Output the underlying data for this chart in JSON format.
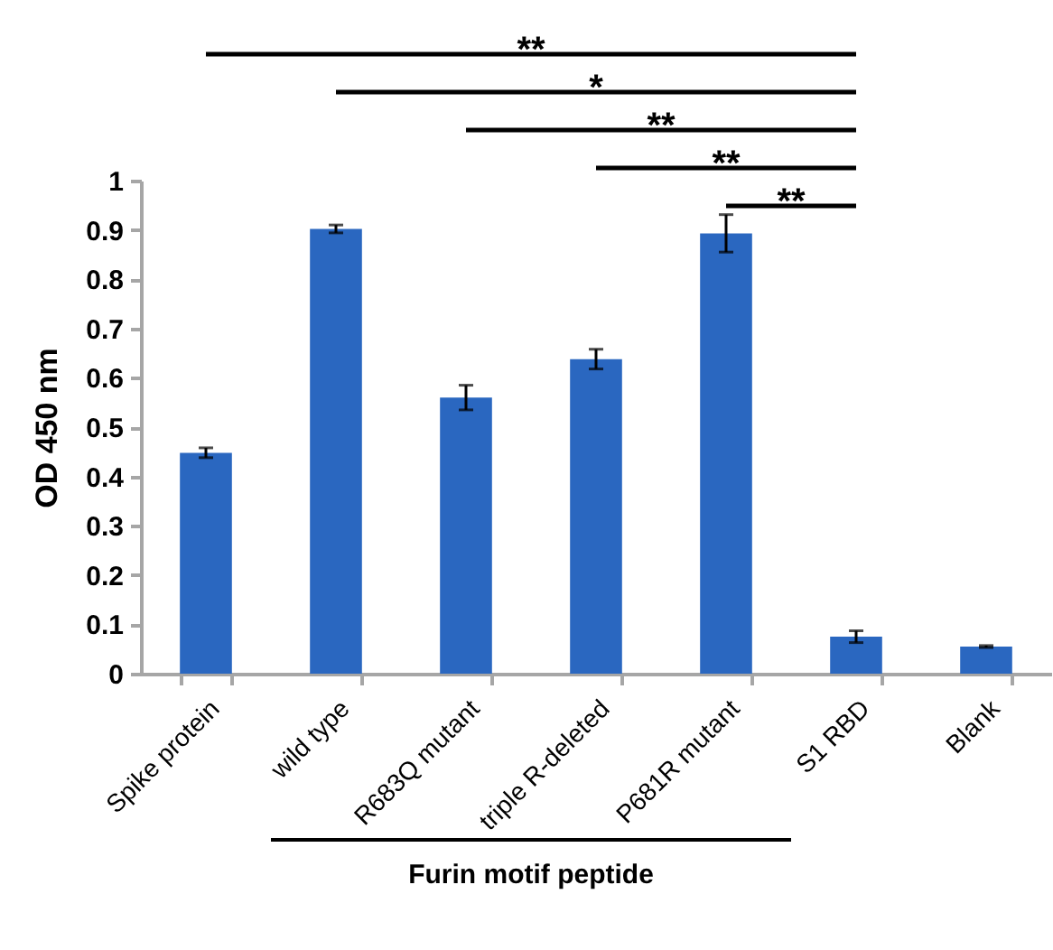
{
  "chart_data": {
    "type": "bar",
    "ylabel": "OD 450 nm",
    "xlabel": "Furin motif peptide",
    "categories": [
      "Spike protein",
      "wild type",
      "R683Q mutant",
      "triple R-deleted",
      "P681R mutant",
      "S1 RBD",
      "Blank"
    ],
    "values": [
      0.448,
      0.902,
      0.56,
      0.638,
      0.893,
      0.075,
      0.055
    ],
    "errors": [
      0.01,
      0.008,
      0.025,
      0.02,
      0.038,
      0.012,
      0.002
    ],
    "color": "#2a67c0",
    "ylim": [
      0,
      1
    ],
    "yticks": [
      0,
      0.1,
      0.2,
      0.3,
      0.4,
      0.5,
      0.6,
      0.7,
      0.8,
      0.9,
      1
    ],
    "grid": false,
    "annotations": [
      "**",
      "*",
      "**",
      "**",
      "**"
    ]
  }
}
